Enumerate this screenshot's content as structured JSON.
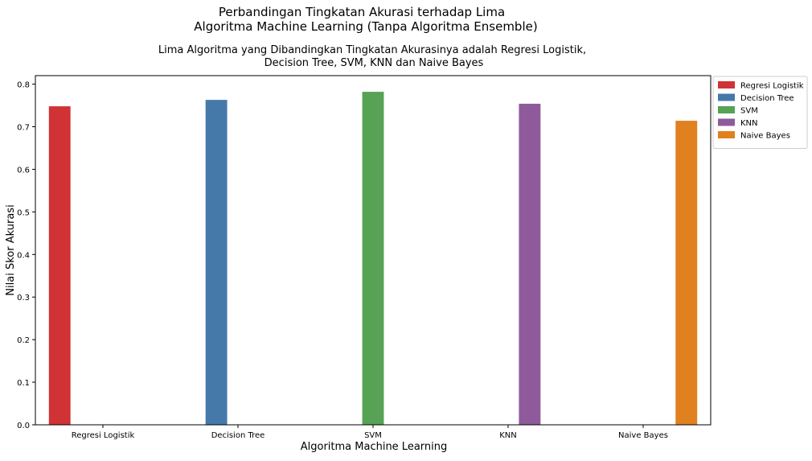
{
  "chart_data": {
    "type": "bar",
    "title_line1": "Perbandingan Tingkatan Akurasi terhadap Lima",
    "title_line2": "Algoritma Machine Learning (Tanpa Algoritma Ensemble)",
    "subtitle_line1": "Lima Algoritma yang Dibandingkan Tingkatan Akurasinya adalah Regresi Logistik,",
    "subtitle_line2": "Decision Tree, SVM, KNN dan Naive Bayes",
    "xlabel": "Algoritma Machine Learning",
    "ylabel": "Nilai Skor Akurasi",
    "ylim": [
      0,
      0.82
    ],
    "yticks": [
      "0.0",
      "0.1",
      "0.2",
      "0.3",
      "0.4",
      "0.5",
      "0.6",
      "0.7",
      "0.8"
    ],
    "categories": [
      "Regresi Logistik",
      "Decision Tree",
      "SVM",
      "KNN",
      "Naive Bayes"
    ],
    "series": [
      {
        "name": "Regresi Logistik",
        "values": [
          0.748,
          null,
          null,
          null,
          null
        ],
        "color": "#d03236"
      },
      {
        "name": "Decision Tree",
        "values": [
          null,
          0.763,
          null,
          null,
          null
        ],
        "color": "#4479aa"
      },
      {
        "name": "SVM",
        "values": [
          null,
          null,
          0.782,
          null,
          null
        ],
        "color": "#57a255"
      },
      {
        "name": "KNN",
        "values": [
          null,
          null,
          null,
          0.754,
          null
        ],
        "color": "#8f5a9b"
      },
      {
        "name": "Naive Bayes",
        "values": [
          null,
          null,
          null,
          null,
          0.714
        ],
        "color": "#e0801f"
      }
    ],
    "legend_position": "outside-right-top",
    "grid": false
  }
}
